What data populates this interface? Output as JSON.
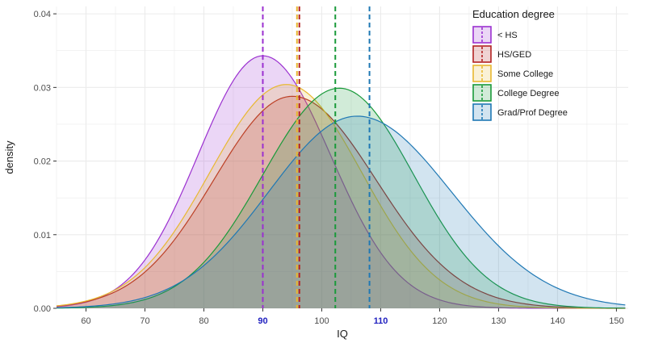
{
  "chart_data": {
    "type": "area",
    "xlabel": "IQ",
    "ylabel": "density",
    "xlim": [
      55,
      152
    ],
    "ylim": [
      0,
      0.041
    ],
    "x_ticks": [
      60,
      70,
      80,
      90,
      100,
      110,
      120,
      130,
      140,
      150
    ],
    "x_ticks_highlighted": [
      90,
      110
    ],
    "y_ticks": [
      0.0,
      0.01,
      0.02,
      0.03,
      0.04
    ],
    "y_tick_labels": [
      "0.00",
      "0.01",
      "0.02",
      "0.03",
      "0.04"
    ],
    "grid": true,
    "legend": {
      "title": "Education degree",
      "position": "top-right"
    },
    "series": [
      {
        "name": "< HS",
        "color": "#9b30d0",
        "mean_line": 90.0,
        "peak_x": 90.0,
        "peak_y": 0.0343,
        "sd_left": 11.0,
        "sd_right": 11.5
      },
      {
        "name": "HS/GED",
        "color": "#b22222",
        "mean_line": 96.2,
        "peak_x": 95.0,
        "peak_y": 0.0288,
        "sd_left": 13.3,
        "sd_right": 14.2
      },
      {
        "name": "Some College",
        "color": "#e8b830",
        "mean_line": 95.8,
        "peak_x": 94.0,
        "peak_y": 0.0304,
        "sd_left": 13.0,
        "sd_right": 12.8
      },
      {
        "name": "College Degree",
        "color": "#1a9a3a",
        "mean_line": 102.3,
        "peak_x": 103.0,
        "peak_y": 0.0299,
        "sd_left": 13.0,
        "sd_right": 12.6
      },
      {
        "name": "Grad/Prof Degree",
        "color": "#1f78b4",
        "mean_line": 108.1,
        "peak_x": 106.0,
        "peak_y": 0.0261,
        "sd_left": 15.0,
        "sd_right": 16.0
      }
    ]
  }
}
